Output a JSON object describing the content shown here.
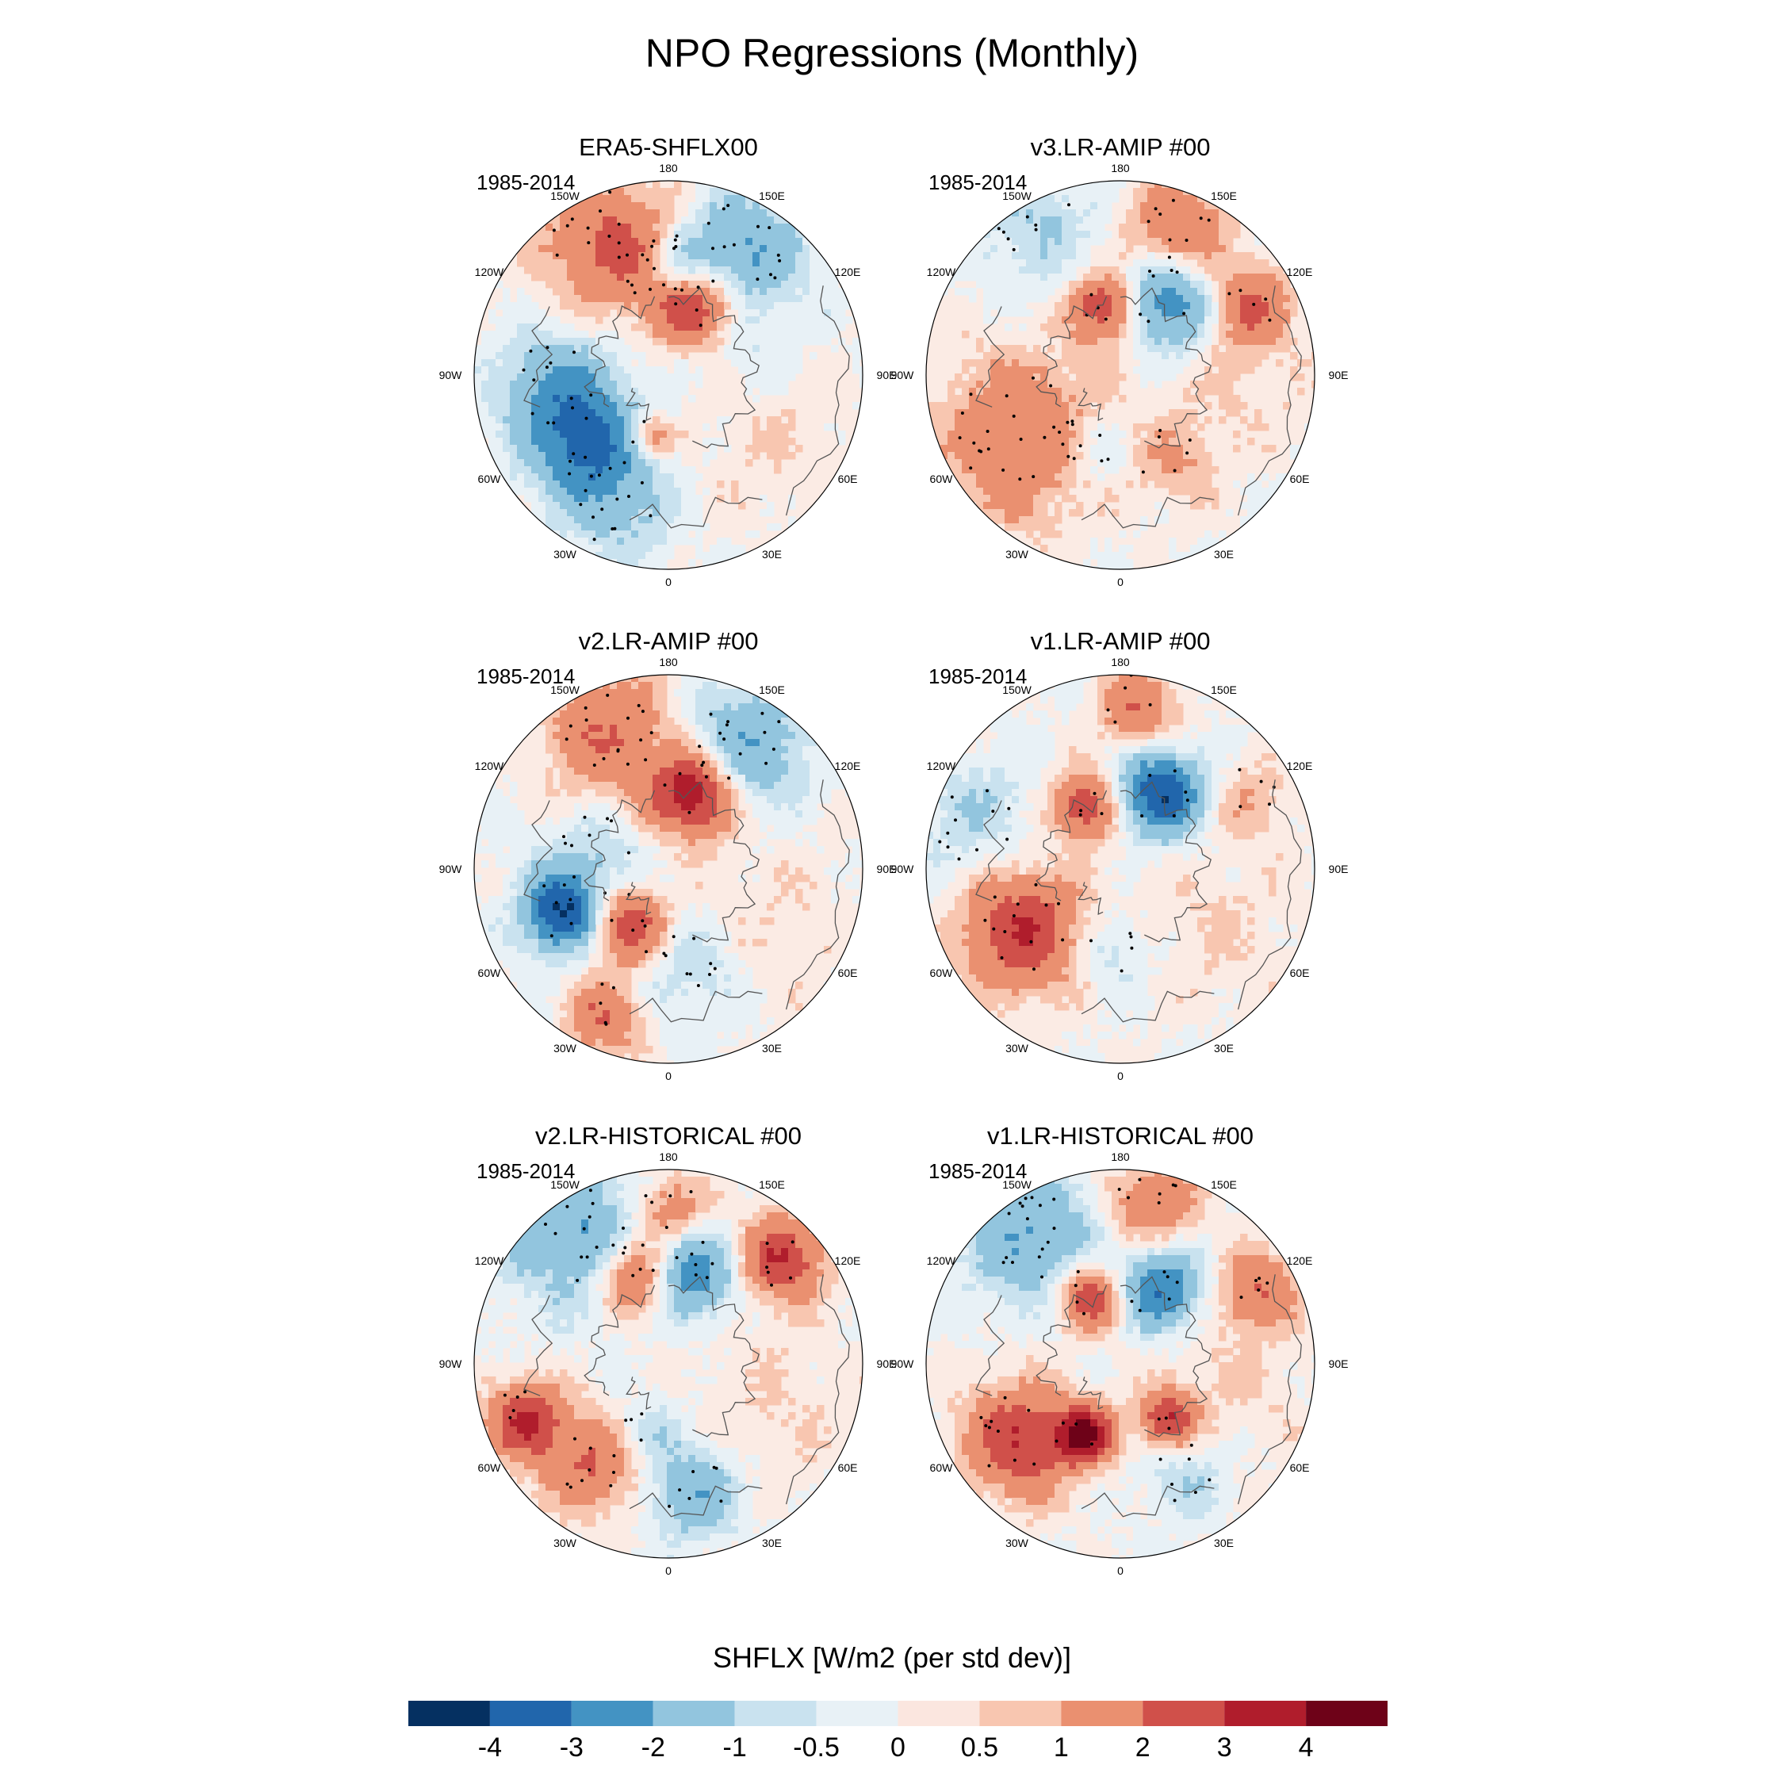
{
  "title": "NPO Regressions (Monthly)",
  "colors": {
    "scale": [
      "#053061",
      "#2166ac",
      "#4393c3",
      "#92c5de",
      "#c9e2ef",
      "#e8f1f6",
      "#fbe6df",
      "#f8c6b0",
      "#ea9070",
      "#d0504a",
      "#b01d2c",
      "#6e0218"
    ],
    "coast": "#555555",
    "stipple": "#000000"
  },
  "chart_data": {
    "type": "polar-stereographic-filled-contour",
    "variable": "SHFLX",
    "colorbar": {
      "title": "SHFLX [W/m2 (per std dev)]",
      "levels": [
        "-4",
        "-3",
        "-2",
        "-1",
        "-0.5",
        "0",
        "0.5",
        "1",
        "2",
        "3",
        "4"
      ]
    },
    "longitude_labels": [
      "180",
      "150E",
      "120E",
      "90E",
      "60E",
      "30E",
      "0",
      "30W",
      "60W",
      "90W",
      "120W",
      "150W"
    ],
    "panels": [
      {
        "title": "ERA5-SHFLX00",
        "period": "1985-2014",
        "anomalies": [
          {
            "lon": -155,
            "r": 0.78,
            "v": 2,
            "s": 0.24
          },
          {
            "lon": -170,
            "r": 0.6,
            "v": 1,
            "s": 0.18
          },
          {
            "lon": 150,
            "r": 0.75,
            "v": -2,
            "s": 0.22
          },
          {
            "lon": 175,
            "r": 0.55,
            "v": -3,
            "s": 0.14
          },
          {
            "lon": 165,
            "r": 0.42,
            "v": 4,
            "s": 0.15
          },
          {
            "lon": -50,
            "r": 0.55,
            "v": -3,
            "s": 0.2
          },
          {
            "lon": -85,
            "r": 0.6,
            "v": -2,
            "s": 0.2
          },
          {
            "lon": -20,
            "r": 0.72,
            "v": -1,
            "s": 0.2
          },
          {
            "lon": -20,
            "r": 0.32,
            "v": 2,
            "s": 0.08
          },
          {
            "lon": 60,
            "r": 0.6,
            "v": 0.5,
            "s": 0.3
          },
          {
            "lon": 110,
            "r": 0.4,
            "v": -0.5,
            "s": 0.2
          }
        ]
      },
      {
        "title": "v3.LR-AMIP  #00",
        "period": "1985-2014",
        "anomalies": [
          {
            "lon": 160,
            "r": 0.82,
            "v": 2,
            "s": 0.18
          },
          {
            "lon": 150,
            "r": 0.45,
            "v": -3,
            "s": 0.16
          },
          {
            "lon": -150,
            "r": 0.9,
            "v": -1,
            "s": 0.22
          },
          {
            "lon": -165,
            "r": 0.38,
            "v": 3,
            "s": 0.12
          },
          {
            "lon": -60,
            "r": 0.6,
            "v": 2,
            "s": 0.3
          },
          {
            "lon": -20,
            "r": 0.4,
            "v": -1,
            "s": 0.14
          },
          {
            "lon": 120,
            "r": 0.75,
            "v": 2,
            "s": 0.14
          },
          {
            "lon": 90,
            "r": 0.6,
            "v": 0.5,
            "s": 0.3
          },
          {
            "lon": 30,
            "r": 0.5,
            "v": 1,
            "s": 0.15
          }
        ]
      },
      {
        "title": "v2.LR-AMIP  #00",
        "period": "1985-2014",
        "anomalies": [
          {
            "lon": -155,
            "r": 0.78,
            "v": 2,
            "s": 0.24
          },
          {
            "lon": 150,
            "r": 0.75,
            "v": -2,
            "s": 0.22
          },
          {
            "lon": 165,
            "r": 0.42,
            "v": 4,
            "s": 0.15
          },
          {
            "lon": -70,
            "r": 0.6,
            "v": -4,
            "s": 0.14
          },
          {
            "lon": -40,
            "r": 0.35,
            "v": 3,
            "s": 0.14
          },
          {
            "lon": -25,
            "r": 0.82,
            "v": 2,
            "s": 0.14
          },
          {
            "lon": -100,
            "r": 0.4,
            "v": -1,
            "s": 0.2
          },
          {
            "lon": 10,
            "r": 0.5,
            "v": -1,
            "s": 0.2
          },
          {
            "lon": 60,
            "r": 0.55,
            "v": 0.5,
            "s": 0.3
          }
        ]
      },
      {
        "title": "v1.LR-AMIP  #00",
        "period": "1985-2014",
        "anomalies": [
          {
            "lon": 175,
            "r": 0.85,
            "v": 2,
            "s": 0.14
          },
          {
            "lon": 155,
            "r": 0.45,
            "v": -4,
            "s": 0.15
          },
          {
            "lon": -150,
            "r": 0.4,
            "v": 3,
            "s": 0.12
          },
          {
            "lon": -60,
            "r": 0.6,
            "v": 3,
            "s": 0.22
          },
          {
            "lon": -110,
            "r": 0.82,
            "v": -1,
            "s": 0.22
          },
          {
            "lon": 120,
            "r": 0.75,
            "v": 1,
            "s": 0.14
          },
          {
            "lon": -10,
            "r": 0.4,
            "v": -1,
            "s": 0.14
          },
          {
            "lon": 60,
            "r": 0.55,
            "v": 0.5,
            "s": 0.3
          }
        ]
      },
      {
        "title": "v2.LR-HISTORICAL  #00",
        "period": "1985-2014",
        "anomalies": [
          {
            "lon": -145,
            "r": 0.85,
            "v": -2,
            "s": 0.26
          },
          {
            "lon": -160,
            "r": 0.5,
            "v": 3,
            "s": 0.14
          },
          {
            "lon": 170,
            "r": 0.5,
            "v": -3,
            "s": 0.16
          },
          {
            "lon": 135,
            "r": 0.8,
            "v": 3,
            "s": 0.15
          },
          {
            "lon": 180,
            "r": 0.8,
            "v": 2,
            "s": 0.14
          },
          {
            "lon": -70,
            "r": 0.8,
            "v": 3,
            "s": 0.14
          },
          {
            "lon": -40,
            "r": 0.65,
            "v": 2,
            "s": 0.18
          },
          {
            "lon": 10,
            "r": 0.65,
            "v": -2,
            "s": 0.16
          },
          {
            "lon": -20,
            "r": 0.35,
            "v": -1,
            "s": 0.12
          },
          {
            "lon": 70,
            "r": 0.55,
            "v": 0.5,
            "s": 0.3
          }
        ]
      },
      {
        "title": "v1.LR-HISTORICAL  #00",
        "period": "1985-2014",
        "anomalies": [
          {
            "lon": -145,
            "r": 0.82,
            "v": -2,
            "s": 0.24
          },
          {
            "lon": 170,
            "r": 0.85,
            "v": 2,
            "s": 0.16
          },
          {
            "lon": 155,
            "r": 0.45,
            "v": -3,
            "s": 0.15
          },
          {
            "lon": -155,
            "r": 0.4,
            "v": 3,
            "s": 0.12
          },
          {
            "lon": -55,
            "r": 0.65,
            "v": 3,
            "s": 0.2
          },
          {
            "lon": -30,
            "r": 0.4,
            "v": 4,
            "s": 0.1
          },
          {
            "lon": 40,
            "r": 0.35,
            "v": 3,
            "s": 0.1
          },
          {
            "lon": 120,
            "r": 0.8,
            "v": 2,
            "s": 0.14
          },
          {
            "lon": 30,
            "r": 0.65,
            "v": -1,
            "s": 0.16
          },
          {
            "lon": 80,
            "r": 0.55,
            "v": 0.5,
            "s": 0.3
          }
        ]
      }
    ]
  }
}
